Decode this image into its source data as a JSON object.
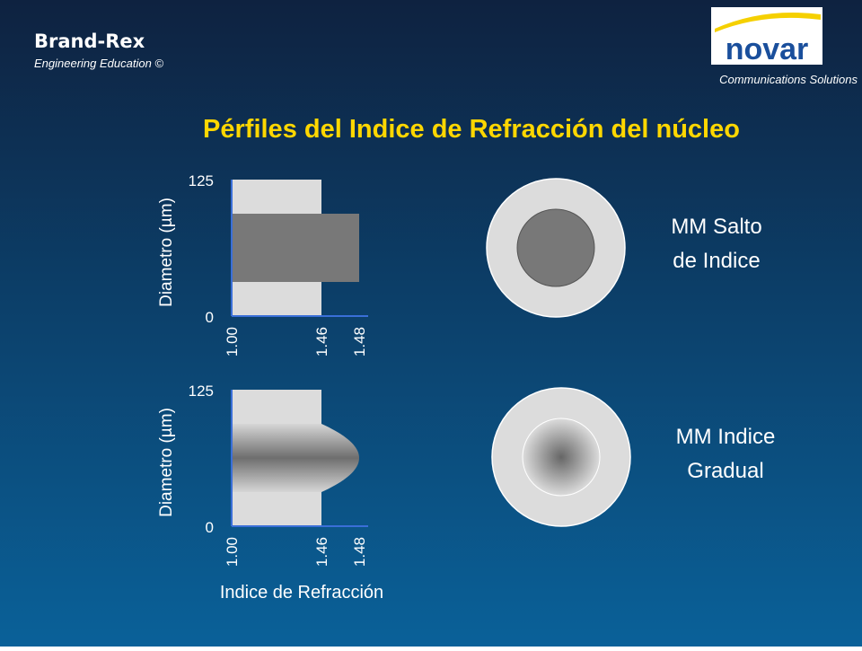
{
  "header": {
    "brand": "Brand-Rex",
    "subtitle": "Engineering Education ©",
    "logo": "novar",
    "tagline": "Communications Solutions"
  },
  "title": "Pérfiles del Indice de Refracción del núcleo",
  "chart_data": [
    {
      "type": "step",
      "ylabel": "Diametro (µm)",
      "ylim": [
        0,
        125
      ],
      "yticks": [
        0,
        125
      ],
      "xlim": [
        1,
        1.48
      ],
      "xticks": [
        {
          "value": 1,
          "label": "1.00"
        },
        1.46,
        1.48
      ],
      "cladding_index": 1.46,
      "core_index": 1.48,
      "core_range": [
        31.25,
        93.75
      ],
      "label": [
        "MM Salto",
        "de Indice"
      ]
    },
    {
      "type": "graded",
      "ylabel": "Diametro (µm)",
      "xlabel": "Indice de Refracción",
      "ylim": [
        0,
        125
      ],
      "yticks": [
        0,
        125
      ],
      "xlim": [
        1,
        1.48
      ],
      "xticks": [
        {
          "value": 1,
          "label": "1.00"
        },
        1.46,
        1.48
      ],
      "cladding_index": 1.46,
      "core_index": 1.48,
      "core_range": [
        31.25,
        93.75
      ],
      "label": [
        "MM Indice",
        "Gradual"
      ]
    }
  ]
}
